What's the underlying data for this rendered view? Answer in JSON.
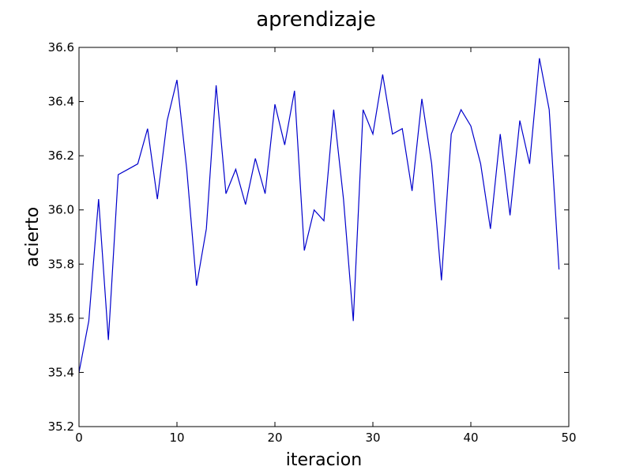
{
  "chart_data": {
    "type": "line",
    "title": "aprendizaje",
    "xlabel": "iteracion",
    "ylabel": "acierto",
    "xlim": [
      0,
      50
    ],
    "ylim": [
      35.2,
      36.6
    ],
    "xticks": [
      0,
      10,
      20,
      30,
      40,
      50
    ],
    "yticks": [
      35.2,
      35.4,
      35.6,
      35.8,
      36.0,
      36.2,
      36.4,
      36.6
    ],
    "xtick_labels": [
      "0",
      "10",
      "20",
      "30",
      "40",
      "50"
    ],
    "ytick_labels": [
      "35.2",
      "35.4",
      "35.6",
      "35.8",
      "36.0",
      "36.2",
      "36.4",
      "36.6"
    ],
    "grid": false,
    "series": [
      {
        "color": "#0000cc",
        "x": [
          0,
          1,
          2,
          3,
          4,
          5,
          6,
          7,
          8,
          9,
          10,
          11,
          12,
          13,
          14,
          15,
          16,
          17,
          18,
          19,
          20,
          21,
          22,
          23,
          24,
          25,
          26,
          27,
          28,
          29,
          30,
          31,
          32,
          33,
          34,
          35,
          36,
          37,
          38,
          39,
          40,
          41,
          42,
          43,
          44,
          45,
          46,
          47,
          48,
          49
        ],
        "y": [
          35.4,
          35.59,
          36.04,
          35.52,
          36.13,
          36.15,
          36.17,
          36.3,
          36.04,
          36.33,
          36.48,
          36.15,
          35.72,
          35.93,
          36.46,
          36.06,
          36.15,
          36.02,
          36.19,
          36.06,
          36.39,
          36.24,
          36.44,
          35.85,
          36.0,
          35.96,
          36.37,
          36.04,
          35.59,
          36.37,
          36.28,
          36.5,
          36.28,
          36.3,
          36.07,
          36.41,
          36.17,
          35.74,
          36.28,
          36.37,
          36.31,
          36.17,
          35.93,
          36.28,
          35.98,
          36.33,
          36.17,
          36.56,
          36.37,
          35.78
        ]
      }
    ]
  }
}
